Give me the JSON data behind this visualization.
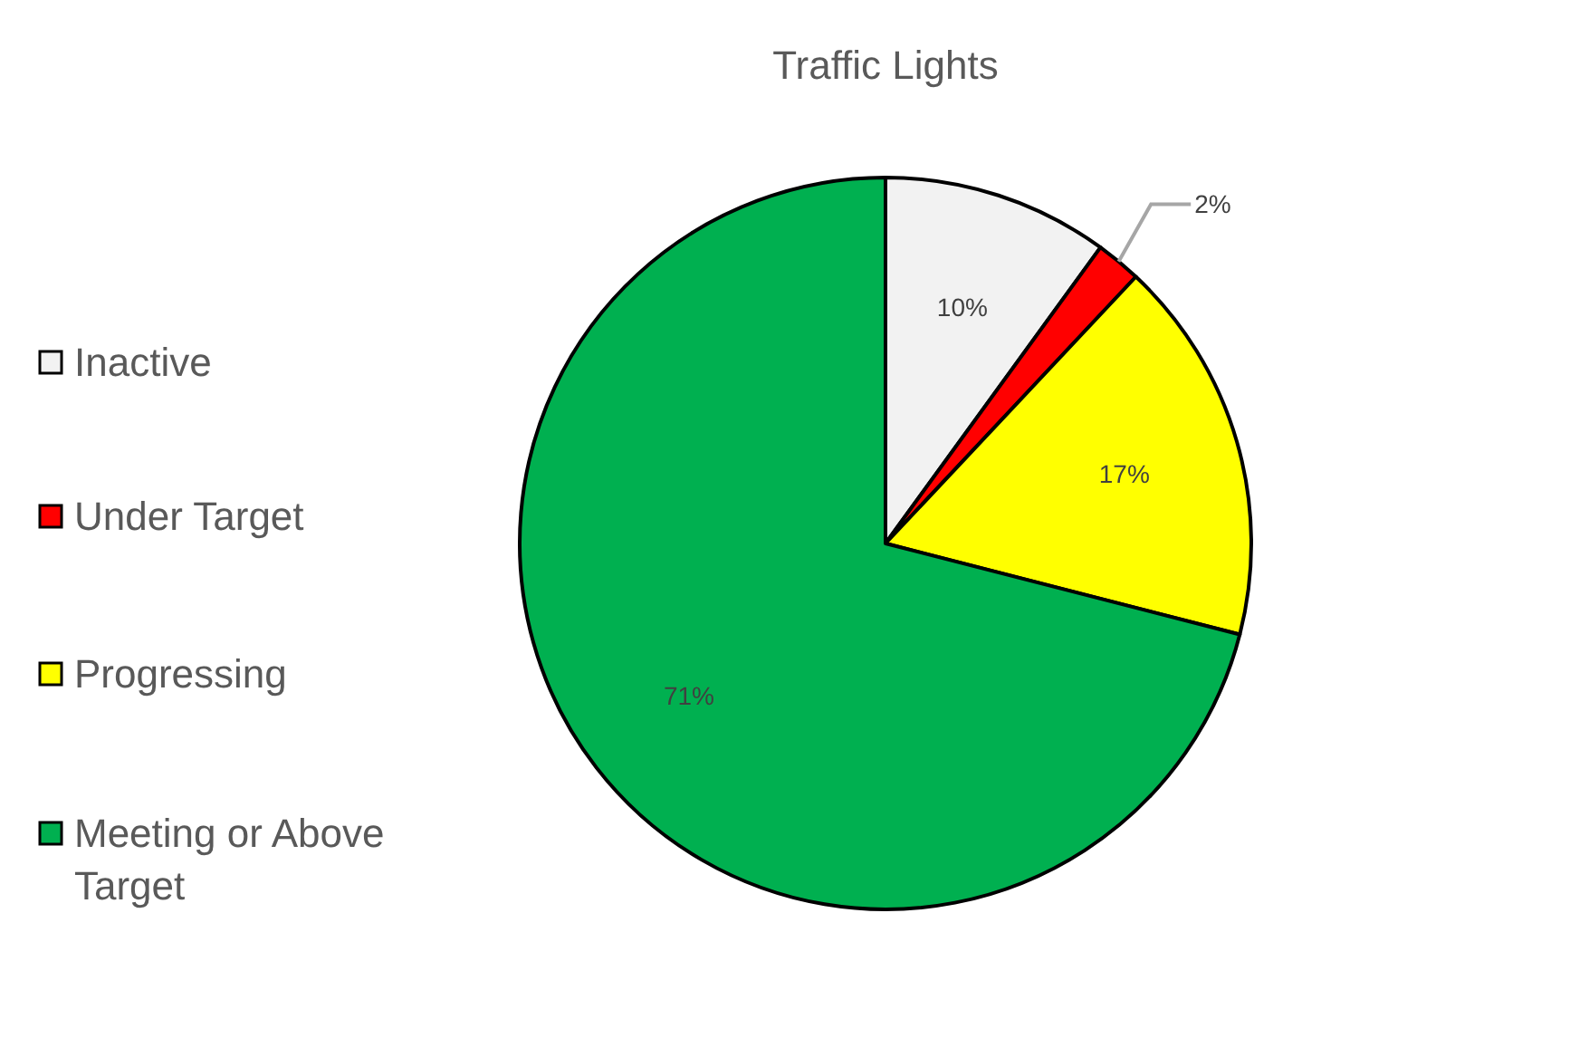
{
  "chart_data": {
    "type": "pie",
    "title": "Traffic Lights",
    "categories": [
      "Inactive",
      "Under Target",
      "Progressing",
      "Meeting or Above Target"
    ],
    "values": [
      10,
      2,
      17,
      71
    ],
    "value_labels": [
      "10%",
      "2%",
      "17%",
      "71%"
    ],
    "colors": [
      "#f2f2f2",
      "#ff0000",
      "#ffff00",
      "#00b050"
    ],
    "legend": "left"
  }
}
